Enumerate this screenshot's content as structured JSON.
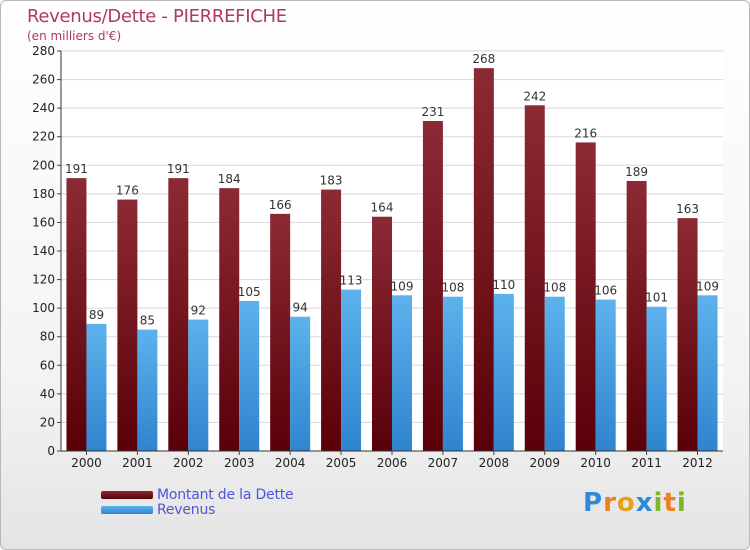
{
  "colors": {
    "debt_dark": "#5a0008",
    "debt_light": "#8c2a34",
    "revenue_dark": "#2f84cf",
    "revenue_light": "#5db2ec",
    "title": "#b03a5b",
    "legend_text": "#4f56d9"
  },
  "chart_data": {
    "type": "bar",
    "title": "Revenus/Dette - PIERREFICHE",
    "subtitle": "(en milliers d'€)",
    "categories": [
      "2000",
      "2001",
      "2002",
      "2003",
      "2004",
      "2005",
      "2006",
      "2007",
      "2008",
      "2009",
      "2010",
      "2011",
      "2012"
    ],
    "series": [
      {
        "name": "Montant de la Dette",
        "values": [
          191,
          176,
          191,
          184,
          166,
          183,
          164,
          231,
          268,
          242,
          216,
          189,
          163
        ]
      },
      {
        "name": "Revenus",
        "values": [
          89,
          85,
          92,
          105,
          94,
          113,
          109,
          108,
          110,
          108,
          106,
          101,
          109
        ]
      }
    ],
    "ylim": [
      0,
      280
    ],
    "yticks": [
      0,
      20,
      40,
      60,
      80,
      100,
      120,
      140,
      160,
      180,
      200,
      220,
      240,
      260,
      280
    ],
    "grid": true,
    "legend_position": "bottom-left"
  },
  "logo": {
    "text": "Proxiti",
    "letters": [
      {
        "ch": "P",
        "color": "#2e8ad8"
      },
      {
        "ch": "r",
        "color": "#f07f22"
      },
      {
        "ch": "o",
        "color": "#e4a11b"
      },
      {
        "ch": "x",
        "color": "#2e8ad8"
      },
      {
        "ch": "i",
        "color": "#7cb72a"
      },
      {
        "ch": "t",
        "color": "#f07f22"
      },
      {
        "ch": "i",
        "color": "#7cb72a"
      }
    ]
  }
}
